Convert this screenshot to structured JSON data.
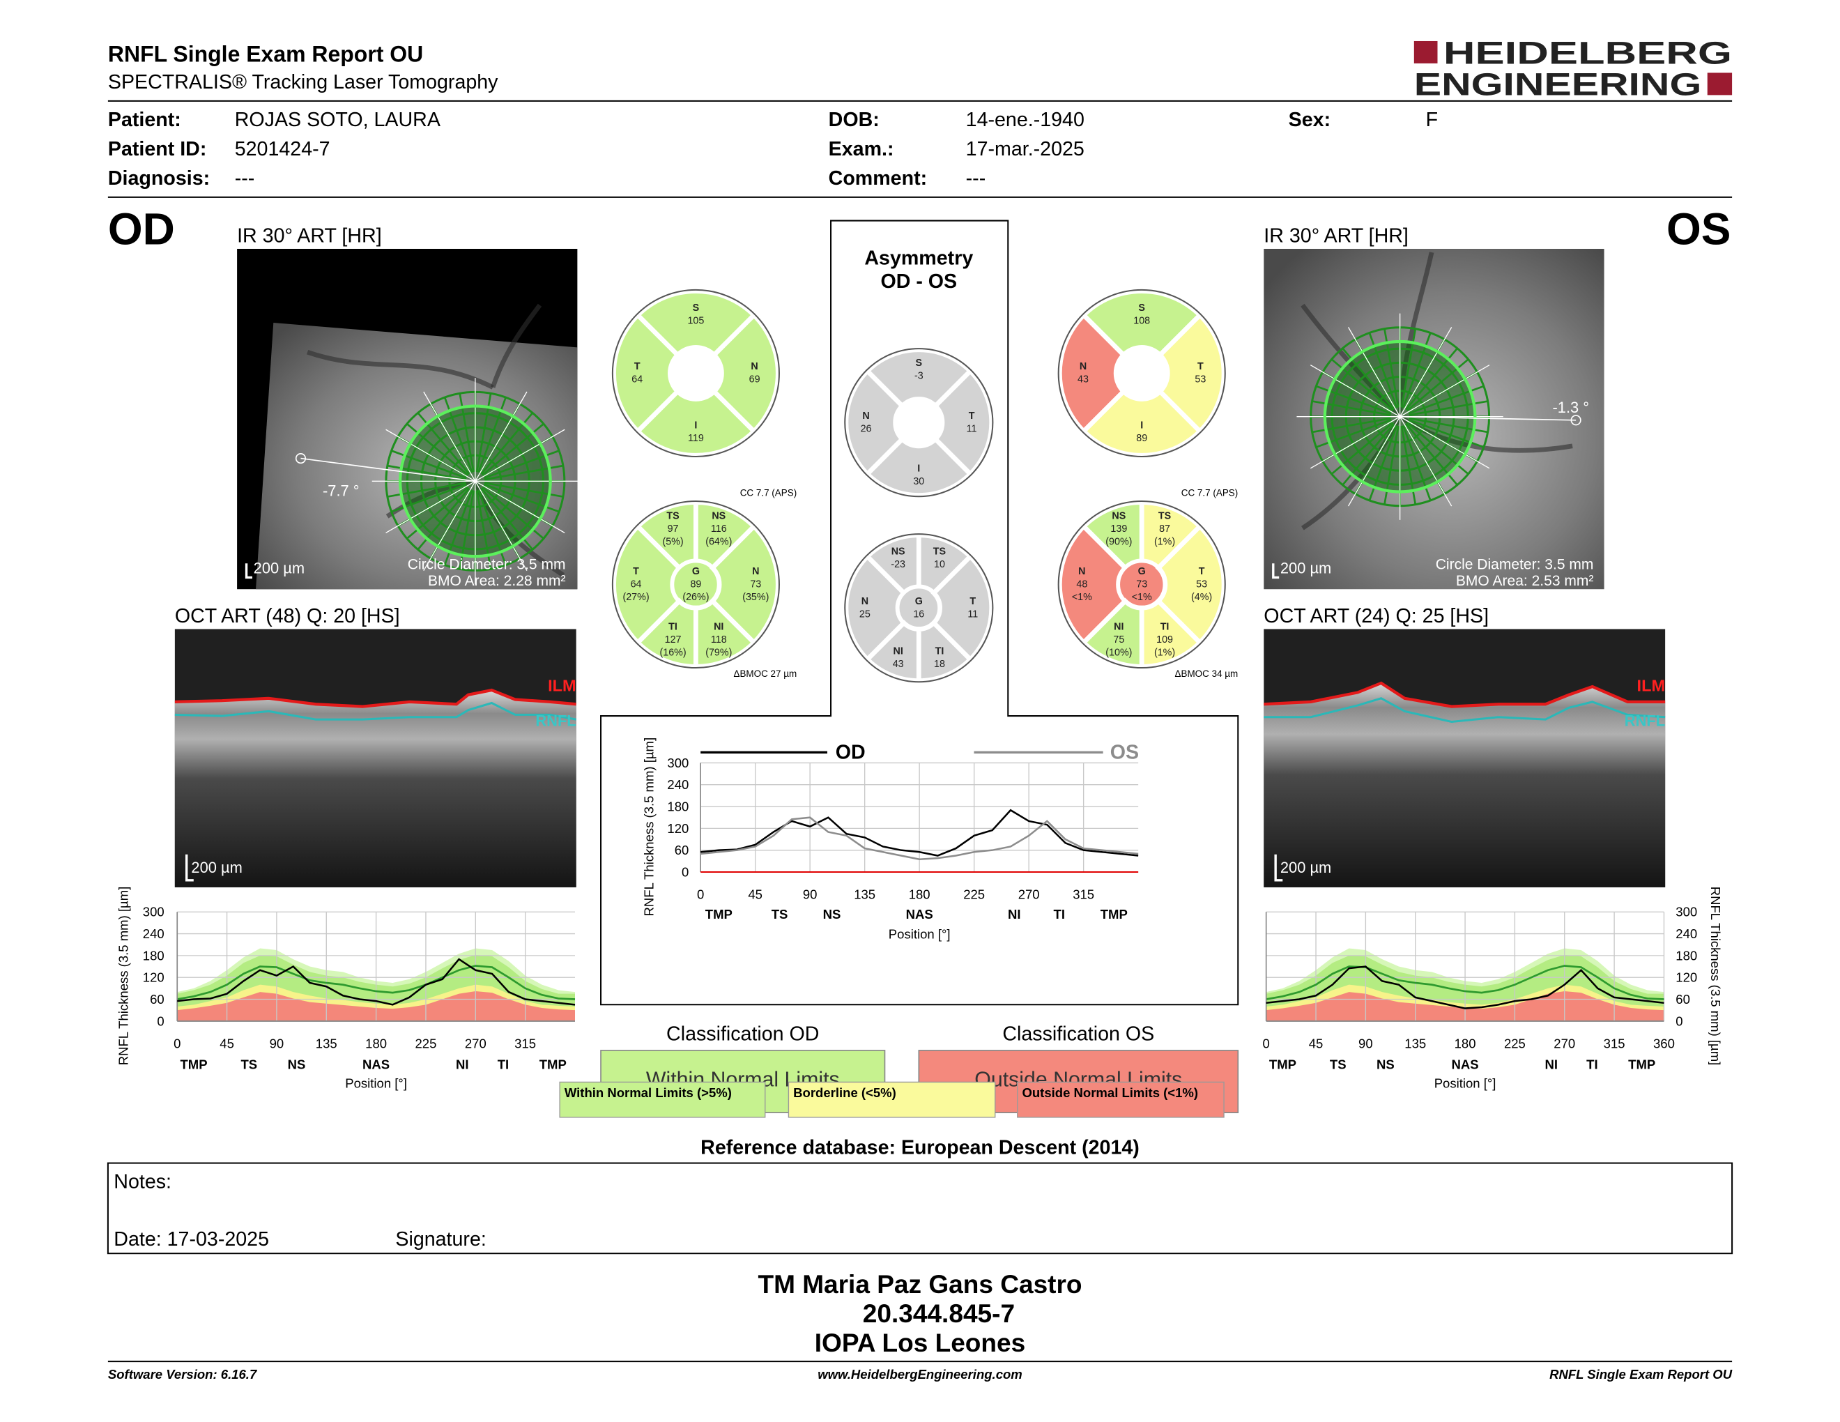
{
  "header": {
    "title": "RNFL Single Exam Report OU",
    "subtitle": "SPECTRALIS® Tracking Laser Tomography",
    "logo": [
      "HEIDELBERG",
      "ENGINEERING"
    ]
  },
  "patient": {
    "patient_label": "Patient:",
    "patient": "ROJAS SOTO, LAURA",
    "id_label": "Patient ID:",
    "id": "5201424-7",
    "diagnosis_label": "Diagnosis:",
    "diagnosis": "---",
    "dob_label": "DOB:",
    "dob": "14-ene.-1940",
    "exam_label": "Exam.:",
    "exam": "17-mar.-2025",
    "comment_label": "Comment:",
    "comment": "---",
    "sex_label": "Sex:",
    "sex": "F"
  },
  "od": {
    "eye": "OD",
    "ir_title": "IR 30° ART [HR]",
    "ir_angle": "-7.7 °",
    "ir_scale": "200 µm",
    "circle_diameter": "Circle Diameter: 3.5 mm",
    "bmo_area": "BMO Area: 2.28 mm²",
    "oct_title": "OCT ART (48) Q: 20 [HS]",
    "ilm": "ILM",
    "rnfl": "RNFL",
    "oct_scale": "200 µm",
    "cc": "CC 7.7 (APS)",
    "bmoc": "ΔBMOC 27 µm",
    "classification_title": "Classification OD",
    "classification": "Within Normal Limits",
    "classification_color": "#c6f28f",
    "sectors4": [
      {
        "name": "S",
        "value": 105,
        "color": "#c6f28f"
      },
      {
        "name": "T",
        "value": 64,
        "color": "#c6f28f"
      },
      {
        "name": "N",
        "value": 69,
        "color": "#c6f28f"
      },
      {
        "name": "I",
        "value": 119,
        "color": "#c6f28f"
      }
    ],
    "sectors6": [
      {
        "name": "TS",
        "value": 97,
        "percentile": "(5%)",
        "color": "#c6f28f"
      },
      {
        "name": "NS",
        "value": 116,
        "percentile": "(64%)",
        "color": "#c6f28f"
      },
      {
        "name": "T",
        "value": 64,
        "percentile": "(27%)",
        "color": "#c6f28f"
      },
      {
        "name": "G",
        "value": 89,
        "percentile": "(26%)",
        "color": "#c6f28f"
      },
      {
        "name": "N",
        "value": 73,
        "percentile": "(35%)",
        "color": "#c6f28f"
      },
      {
        "name": "TI",
        "value": 127,
        "percentile": "(16%)",
        "color": "#c6f28f"
      },
      {
        "name": "NI",
        "value": 118,
        "percentile": "(79%)",
        "color": "#c6f28f"
      }
    ]
  },
  "os": {
    "eye": "OS",
    "ir_title": "IR 30° ART [HR]",
    "ir_angle": "-1.3 °",
    "ir_scale": "200 µm",
    "circle_diameter": "Circle Diameter: 3.5 mm",
    "bmo_area": "BMO Area: 2.53 mm²",
    "oct_title": "OCT ART (24) Q: 25 [HS]",
    "ilm": "ILM",
    "rnfl": "RNFL",
    "oct_scale": "200 µm",
    "cc": "CC 7.7 (APS)",
    "bmoc": "ΔBMOC 34 µm",
    "classification_title": "Classification OS",
    "classification": "Outside Normal Limits",
    "classification_color": "#f4897d",
    "sectors4": [
      {
        "name": "S",
        "value": 108,
        "color": "#c6f28f"
      },
      {
        "name": "N",
        "value": 43,
        "color": "#f4897d"
      },
      {
        "name": "T",
        "value": 53,
        "color": "#fafa9c"
      },
      {
        "name": "I",
        "value": 89,
        "color": "#fafa9c"
      }
    ],
    "sectors6": [
      {
        "name": "NS",
        "value": 139,
        "percentile": "(90%)",
        "color": "#c6f28f"
      },
      {
        "name": "TS",
        "value": 87,
        "percentile": "(1%)",
        "color": "#fafa9c"
      },
      {
        "name": "N",
        "value": 48,
        "percentile": "<1%",
        "color": "#f4897d"
      },
      {
        "name": "G",
        "value": 73,
        "percentile": "<1%",
        "color": "#f4897d"
      },
      {
        "name": "T",
        "value": 53,
        "percentile": "(4%)",
        "color": "#fafa9c"
      },
      {
        "name": "NI",
        "value": 75,
        "percentile": "(10%)",
        "color": "#c6f28f"
      },
      {
        "name": "TI",
        "value": 109,
        "percentile": "(1%)",
        "color": "#fafa9c"
      }
    ]
  },
  "asymmetry": {
    "title": "Asymmetry",
    "subtitle": "OD - OS",
    "sectors4": [
      {
        "name": "S",
        "value": -3,
        "color": "#d3d3d3"
      },
      {
        "name": "N",
        "value": 26,
        "color": "#d3d3d3"
      },
      {
        "name": "T",
        "value": 11,
        "color": "#d3d3d3"
      },
      {
        "name": "I",
        "value": 30,
        "color": "#d3d3d3"
      }
    ],
    "sectors6": [
      {
        "name": "NS",
        "value": -23,
        "color": "#d3d3d3"
      },
      {
        "name": "TS",
        "value": 10,
        "color": "#d3d3d3"
      },
      {
        "name": "N",
        "value": 25,
        "color": "#d3d3d3"
      },
      {
        "name": "G",
        "value": 16,
        "color": "#d3d3d3"
      },
      {
        "name": "T",
        "value": 11,
        "color": "#d3d3d3"
      },
      {
        "name": "NI",
        "value": 43,
        "color": "#d3d3d3"
      },
      {
        "name": "TI",
        "value": 18,
        "color": "#d3d3d3"
      }
    ]
  },
  "chart_data": [
    {
      "type": "line",
      "y_label": "RNFL Thickness (3.5 mm) [µm]",
      "x_label": "Position [°]",
      "xlim": [
        0,
        360
      ],
      "ylim": [
        0,
        300
      ],
      "xticks": [
        0,
        45,
        90,
        135,
        180,
        225,
        270,
        315
      ],
      "yticks": [
        0,
        60,
        120,
        180,
        240,
        300
      ],
      "grid": true,
      "sector_ticks": [
        {
          "value": 15,
          "label": "TMP"
        },
        {
          "value": 65,
          "label": "TS"
        },
        {
          "value": 108,
          "label": "NS"
        },
        {
          "value": 180,
          "label": "NAS"
        },
        {
          "value": 258,
          "label": "NI"
        },
        {
          "value": 295,
          "label": "TI"
        },
        {
          "value": 340,
          "label": "TMP"
        }
      ],
      "x": [
        0,
        15,
        30,
        45,
        60,
        75,
        90,
        105,
        120,
        135,
        150,
        165,
        180,
        195,
        210,
        225,
        240,
        255,
        270,
        285,
        300,
        315,
        330,
        345,
        360
      ],
      "series": [
        {
          "color": "#000000",
          "values": [
            55,
            60,
            62,
            75,
            110,
            140,
            125,
            150,
            105,
            95,
            70,
            60,
            55,
            45,
            65,
            100,
            115,
            170,
            140,
            130,
            80,
            60,
            55,
            50,
            45
          ]
        }
      ],
      "normative": {
        "p99": [
          80,
          90,
          110,
          140,
          175,
          200,
          195,
          170,
          150,
          140,
          135,
          120,
          110,
          105,
          115,
          135,
          160,
          185,
          200,
          195,
          165,
          125,
          100,
          85,
          80
        ],
        "p95": [
          75,
          85,
          100,
          125,
          160,
          180,
          178,
          155,
          135,
          125,
          120,
          108,
          100,
          95,
          103,
          120,
          145,
          168,
          182,
          178,
          148,
          110,
          88,
          75,
          75
        ],
        "p5": [
          40,
          45,
          55,
          65,
          85,
          100,
          95,
          80,
          70,
          62,
          58,
          52,
          48,
          45,
          50,
          60,
          75,
          90,
          100,
          95,
          75,
          55,
          45,
          42,
          40
        ],
        "p1": [
          30,
          35,
          42,
          50,
          65,
          80,
          75,
          62,
          52,
          48,
          44,
          40,
          36,
          34,
          38,
          45,
          60,
          75,
          82,
          78,
          60,
          45,
          36,
          32,
          30
        ],
        "mean": [
          60,
          68,
          80,
          100,
          130,
          150,
          148,
          130,
          112,
          105,
          100,
          90,
          82,
          78,
          85,
          100,
          120,
          140,
          152,
          148,
          120,
          90,
          72,
          62,
          60
        ]
      },
      "normative_colors": {
        "p99": "#d6f7b8",
        "p95": "#b4ec82",
        "p5": "#f7f38a",
        "p1": "#f4877a",
        "mean": "#2e9a2e"
      }
    },
    {
      "type": "line",
      "y_label": "RNFL Thickness (3.5 mm) [µm]",
      "x_label": "Position [°]",
      "xlim": [
        0,
        360
      ],
      "ylim": [
        0,
        300
      ],
      "xticks": [
        0,
        45,
        90,
        135,
        180,
        225,
        270,
        315
      ],
      "yticks": [
        0,
        60,
        120,
        180,
        240,
        300
      ],
      "grid": true,
      "sector_ticks": [
        {
          "value": 15,
          "label": "TMP"
        },
        {
          "value": 65,
          "label": "TS"
        },
        {
          "value": 108,
          "label": "NS"
        },
        {
          "value": 180,
          "label": "NAS"
        },
        {
          "value": 258,
          "label": "NI"
        },
        {
          "value": 295,
          "label": "TI"
        },
        {
          "value": 340,
          "label": "TMP"
        }
      ],
      "x": [
        0,
        15,
        30,
        45,
        60,
        75,
        90,
        105,
        120,
        135,
        150,
        165,
        180,
        195,
        210,
        225,
        240,
        255,
        270,
        285,
        300,
        315,
        330,
        345,
        360
      ],
      "series": [
        {
          "name": "OD",
          "color": "#000000",
          "values": [
            55,
            60,
            62,
            75,
            110,
            140,
            125,
            150,
            105,
            95,
            70,
            60,
            55,
            45,
            65,
            100,
            115,
            170,
            140,
            130,
            80,
            60,
            55,
            50,
            45
          ]
        },
        {
          "name": "OS",
          "color": "#8c8c8c",
          "values": [
            50,
            55,
            60,
            70,
            100,
            145,
            150,
            110,
            100,
            65,
            55,
            45,
            35,
            38,
            45,
            55,
            60,
            70,
            100,
            140,
            90,
            65,
            60,
            55,
            50
          ]
        }
      ]
    },
    {
      "type": "line",
      "y_label": "RNFL Thickness (3.5 mm) [µm]",
      "x_label": "Position [°]",
      "xlim": [
        0,
        360
      ],
      "ylim": [
        0,
        300
      ],
      "xticks": [
        0,
        45,
        90,
        135,
        180,
        225,
        270,
        315,
        360
      ],
      "yticks": [
        0,
        60,
        120,
        180,
        240,
        300
      ],
      "grid": true,
      "sector_ticks": [
        {
          "value": 15,
          "label": "TMP"
        },
        {
          "value": 65,
          "label": "TS"
        },
        {
          "value": 108,
          "label": "NS"
        },
        {
          "value": 180,
          "label": "NAS"
        },
        {
          "value": 258,
          "label": "NI"
        },
        {
          "value": 295,
          "label": "TI"
        },
        {
          "value": 340,
          "label": "TMP"
        }
      ],
      "x": [
        0,
        15,
        30,
        45,
        60,
        75,
        90,
        105,
        120,
        135,
        150,
        165,
        180,
        195,
        210,
        225,
        240,
        255,
        270,
        285,
        300,
        315,
        330,
        345,
        360
      ],
      "series": [
        {
          "color": "#000000",
          "values": [
            50,
            55,
            60,
            70,
            100,
            145,
            150,
            110,
            100,
            65,
            55,
            45,
            35,
            38,
            45,
            55,
            60,
            70,
            100,
            140,
            90,
            65,
            60,
            55,
            50
          ]
        }
      ],
      "normative": {
        "p99": [
          80,
          90,
          110,
          140,
          175,
          200,
          195,
          170,
          150,
          140,
          135,
          120,
          110,
          105,
          115,
          135,
          160,
          185,
          200,
          195,
          165,
          125,
          100,
          85,
          80
        ],
        "p95": [
          75,
          85,
          100,
          125,
          160,
          180,
          178,
          155,
          135,
          125,
          120,
          108,
          100,
          95,
          103,
          120,
          145,
          168,
          182,
          178,
          148,
          110,
          88,
          75,
          75
        ],
        "p5": [
          40,
          45,
          55,
          65,
          85,
          100,
          95,
          80,
          70,
          62,
          58,
          52,
          48,
          45,
          50,
          60,
          75,
          90,
          100,
          95,
          75,
          55,
          45,
          42,
          40
        ],
        "p1": [
          30,
          35,
          42,
          50,
          65,
          80,
          75,
          62,
          52,
          48,
          44,
          40,
          36,
          34,
          38,
          45,
          60,
          75,
          82,
          78,
          60,
          45,
          36,
          32,
          30
        ],
        "mean": [
          60,
          68,
          80,
          100,
          130,
          150,
          148,
          130,
          112,
          105,
          100,
          90,
          82,
          78,
          85,
          100,
          120,
          140,
          152,
          148,
          120,
          90,
          72,
          62,
          60
        ]
      },
      "normative_colors": {
        "p99": "#d6f7b8",
        "p95": "#b4ec82",
        "p5": "#f7f38a",
        "p1": "#f4877a",
        "mean": "#2e9a2e"
      }
    }
  ],
  "legend": [
    {
      "label": "Within Normal Limits (>5%)",
      "color": "#c6f28f"
    },
    {
      "label": "Borderline (<5%)",
      "color": "#fafa9c"
    },
    {
      "label": "Outside Normal Limits (<1%)",
      "color": "#f4897d"
    }
  ],
  "reference": "Reference database: European Descent (2014)",
  "notes": {
    "label": "Notes:",
    "date": "Date: 17-03-2025",
    "signature": "Signature:"
  },
  "signature": [
    "TM Maria Paz Gans Castro",
    "20.344.845-7",
    "IOPA Los Leones"
  ],
  "footer": {
    "left": "Software Version: 6.16.7",
    "center": "www.HeidelbergEngineering.com",
    "right": "RNFL Single Exam Report OU"
  }
}
